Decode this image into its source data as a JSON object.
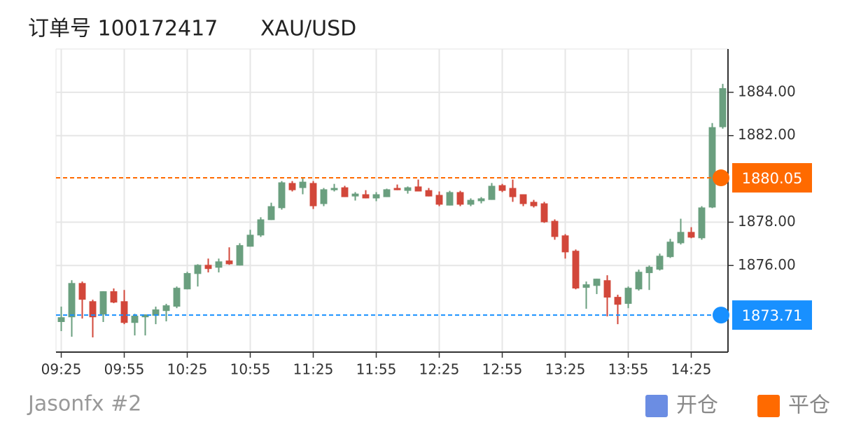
{
  "chart_data": {
    "type": "candlestick",
    "title": "订单号 100172417",
    "symbol": "XAU/USD",
    "footer": "Jasonfx #2",
    "up_color": "#6a9f7f",
    "down_color": "#d2473a",
    "grid": true,
    "categories": [
      "09:25",
      null,
      null,
      null,
      null,
      null,
      "09:55",
      null,
      null,
      null,
      null,
      null,
      "10:25",
      null,
      null,
      null,
      null,
      null,
      "10:55",
      null,
      null,
      null,
      null,
      null,
      "11:25",
      null,
      null,
      null,
      null,
      null,
      "11:55",
      null,
      null,
      null,
      null,
      null,
      "12:25",
      null,
      null,
      null,
      null,
      null,
      "12:55",
      null,
      null,
      null,
      null,
      null,
      "13:25",
      null,
      null,
      null,
      null,
      null,
      "13:55",
      null,
      null,
      null,
      null,
      null,
      "14:25",
      null,
      null,
      null
    ],
    "open": [
      1873.39,
      1873.61,
      1875.19,
      1874.35,
      1873.74,
      1874.81,
      1874.35,
      1873.35,
      1873.61,
      1873.68,
      1873.9,
      1874.1,
      1874.9,
      1875.61,
      1876.03,
      1875.9,
      1876.23,
      1876.0,
      1876.87,
      1877.39,
      1878.1,
      1878.65,
      1879.81,
      1879.58,
      1879.81,
      1878.84,
      1879.48,
      1879.61,
      1879.19,
      1879.29,
      1879.1,
      1879.16,
      1879.58,
      1879.45,
      1879.65,
      1879.48,
      1879.26,
      1878.77,
      1879.39,
      1878.81,
      1878.97,
      1879.03,
      1879.71,
      1879.58,
      1879.29,
      1878.94,
      1878.87,
      1878.06,
      1877.39,
      1876.68,
      1874.97,
      1875.06,
      1875.32,
      1874.55,
      1874.23,
      1874.9,
      1875.65,
      1875.81,
      1876.39,
      1877.03,
      1877.55,
      1877.26,
      1878.68,
      1882.39
    ],
    "high": [
      1874.1,
      1875.32,
      1875.26,
      1874.42,
      1874.81,
      1874.94,
      1874.87,
      1873.77,
      1873.74,
      1874.1,
      1874.23,
      1875.03,
      1875.71,
      1876.06,
      1876.32,
      1876.32,
      1876.84,
      1877.03,
      1877.65,
      1878.23,
      1878.9,
      1879.9,
      1879.9,
      1880.06,
      1879.9,
      1879.58,
      1879.77,
      1879.68,
      1879.39,
      1879.48,
      1879.39,
      1879.55,
      1879.74,
      1879.65,
      1879.97,
      1879.58,
      1879.42,
      1879.45,
      1879.45,
      1879.1,
      1879.16,
      1879.81,
      1879.77,
      1879.97,
      1879.29,
      1879.03,
      1878.94,
      1878.13,
      1877.45,
      1876.74,
      1875.26,
      1875.39,
      1875.55,
      1874.65,
      1875.03,
      1875.81,
      1876.0,
      1876.55,
      1877.23,
      1878.16,
      1877.77,
      1878.74,
      1882.58,
      1884.39
    ],
    "low": [
      1872.97,
      1872.71,
      1873.55,
      1872.68,
      1873.39,
      1874.26,
      1873.29,
      1872.77,
      1872.77,
      1873.29,
      1873.42,
      1874.03,
      1874.9,
      1875.03,
      1875.68,
      1875.68,
      1876.03,
      1876.0,
      1876.87,
      1877.32,
      1878.1,
      1878.58,
      1879.42,
      1879.29,
      1878.61,
      1878.74,
      1879.42,
      1879.16,
      1879.0,
      1879.1,
      1878.97,
      1879.16,
      1879.48,
      1879.32,
      1879.42,
      1879.19,
      1878.74,
      1878.77,
      1878.74,
      1878.74,
      1878.87,
      1879.03,
      1879.39,
      1878.94,
      1878.74,
      1878.68,
      1877.97,
      1877.19,
      1876.32,
      1874.9,
      1874.0,
      1874.68,
      1873.65,
      1873.29,
      1874.03,
      1874.84,
      1874.87,
      1875.77,
      1876.35,
      1876.97,
      1877.26,
      1877.19,
      1878.65,
      1882.32
    ],
    "close": [
      1873.61,
      1875.19,
      1874.42,
      1873.61,
      1874.81,
      1874.29,
      1873.35,
      1873.68,
      1873.74,
      1873.97,
      1874.16,
      1874.97,
      1875.65,
      1876.03,
      1875.84,
      1876.19,
      1876.06,
      1876.94,
      1877.42,
      1878.13,
      1878.74,
      1879.84,
      1879.48,
      1879.87,
      1878.74,
      1879.52,
      1879.58,
      1879.16,
      1879.32,
      1879.1,
      1879.29,
      1879.52,
      1879.48,
      1879.61,
      1879.42,
      1879.19,
      1878.81,
      1879.39,
      1878.81,
      1879.03,
      1879.1,
      1879.68,
      1879.45,
      1879.16,
      1878.84,
      1878.74,
      1878.0,
      1877.32,
      1876.61,
      1874.94,
      1875.13,
      1875.39,
      1874.52,
      1874.19,
      1874.97,
      1875.71,
      1875.94,
      1876.45,
      1877.1,
      1877.55,
      1877.29,
      1878.68,
      1882.39,
      1884.19
    ],
    "ylim": [
      1872,
      1886
    ],
    "yticks": [
      {
        "value": 1876,
        "label": "1876.00"
      },
      {
        "value": 1878,
        "label": "1878.00"
      },
      {
        "value": 1882,
        "label": "1882.00"
      },
      {
        "value": 1884,
        "label": "1884.00"
      }
    ],
    "lines": [
      {
        "name": "开仓",
        "value": 1873.71,
        "color": "#1890ff",
        "legend_color": "#6b8de3"
      },
      {
        "name": "平仓",
        "value": 1880.05,
        "color": "#ff6a00",
        "legend_color": "#ff6a00"
      }
    ]
  }
}
